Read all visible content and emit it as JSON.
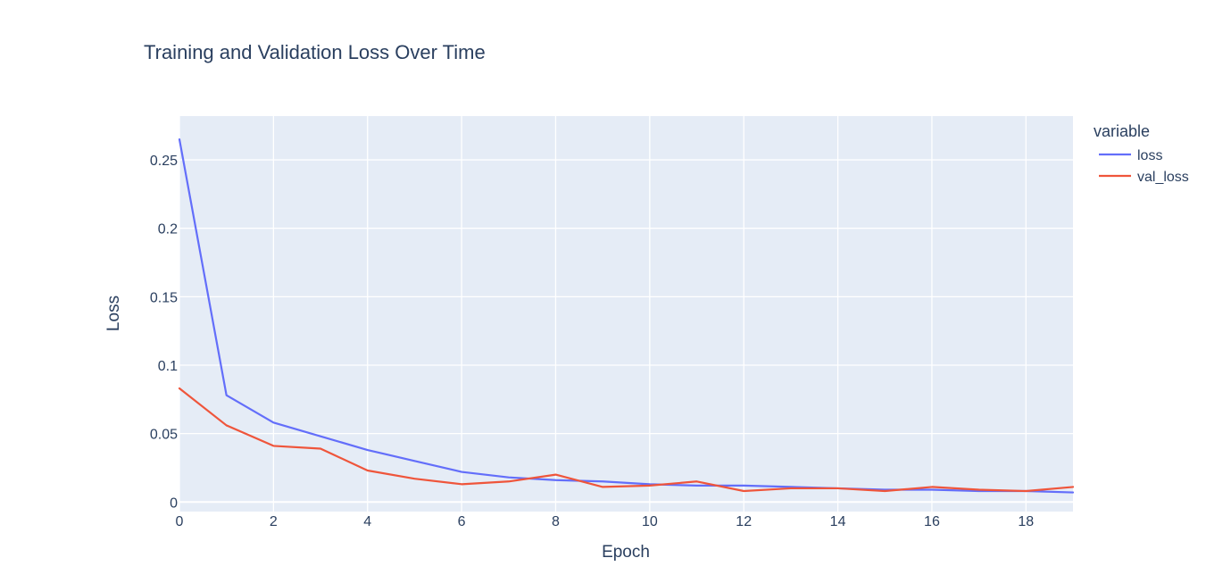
{
  "chart_data": {
    "type": "line",
    "title": "Training and Validation Loss Over Time",
    "xlabel": "Epoch",
    "ylabel": "Loss",
    "xlim": [
      0,
      19
    ],
    "ylim": [
      -0.007,
      0.282
    ],
    "x_ticks": [
      0,
      2,
      4,
      6,
      8,
      10,
      12,
      14,
      16,
      18
    ],
    "y_ticks": [
      0,
      0.05,
      0.1,
      0.15,
      0.2,
      0.25
    ],
    "y_tick_labels": [
      "0",
      "0.05",
      "0.1",
      "0.15",
      "0.2",
      "0.25"
    ],
    "grid": true,
    "legend_title": "variable",
    "legend_position": "top-right-outside",
    "plot_background": "#e5ecf6",
    "x": [
      0,
      1,
      2,
      3,
      4,
      5,
      6,
      7,
      8,
      9,
      10,
      11,
      12,
      13,
      14,
      15,
      16,
      17,
      18,
      19
    ],
    "series": [
      {
        "name": "loss",
        "color": "#636efa",
        "values": [
          0.265,
          0.078,
          0.058,
          0.048,
          0.038,
          0.03,
          0.022,
          0.018,
          0.016,
          0.015,
          0.013,
          0.012,
          0.012,
          0.011,
          0.01,
          0.009,
          0.009,
          0.008,
          0.008,
          0.007
        ]
      },
      {
        "name": "val_loss",
        "color": "#ef553b",
        "values": [
          0.083,
          0.056,
          0.041,
          0.039,
          0.023,
          0.017,
          0.013,
          0.015,
          0.02,
          0.011,
          0.012,
          0.015,
          0.008,
          0.01,
          0.01,
          0.008,
          0.011,
          0.009,
          0.008,
          0.011
        ]
      }
    ]
  }
}
